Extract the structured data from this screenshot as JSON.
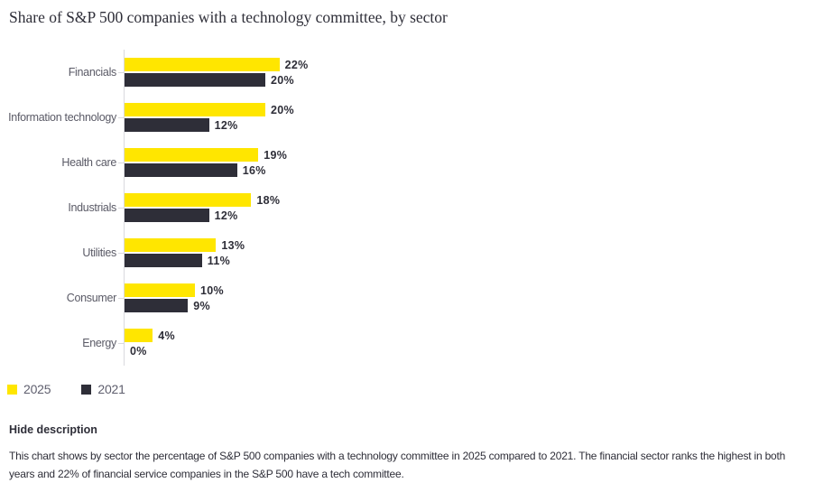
{
  "title": "Share of S&P 500 companies with a technology committee, by sector",
  "chart_data": {
    "type": "bar",
    "orientation": "horizontal",
    "categories": [
      "Financials",
      "Information technology",
      "Health care",
      "Industrials",
      "Utilities",
      "Consumer",
      "Energy"
    ],
    "series": [
      {
        "name": "2025",
        "color": "#FFE600",
        "values": [
          22,
          20,
          19,
          18,
          13,
          10,
          4
        ]
      },
      {
        "name": "2021",
        "color": "#2E2E38",
        "values": [
          20,
          12,
          16,
          12,
          11,
          9,
          0
        ]
      }
    ],
    "value_suffix": "%",
    "xlim": [
      0,
      25
    ],
    "grid": "off",
    "legend_position": "bottom-left",
    "title": "Share of S&P 500 companies with a technology committee, by sector"
  },
  "legend": [
    {
      "label": "2025",
      "color": "#FFE600"
    },
    {
      "label": "2021",
      "color": "#2E2E38"
    }
  ],
  "description_toggle": "Hide description",
  "description": "This chart shows by sector the percentage of S&P 500 companies with a technology committee in 2025 compared to 2021. The financial sector ranks the highest in both years and 22% of financial service companies in the S&P 500 have a tech committee.",
  "colors": {
    "series_2025": "#FFE600",
    "series_2021": "#2E2E38",
    "axis": "#d9d9de",
    "category_label": "#5a5a66",
    "text_dark": "#2e2e38"
  }
}
